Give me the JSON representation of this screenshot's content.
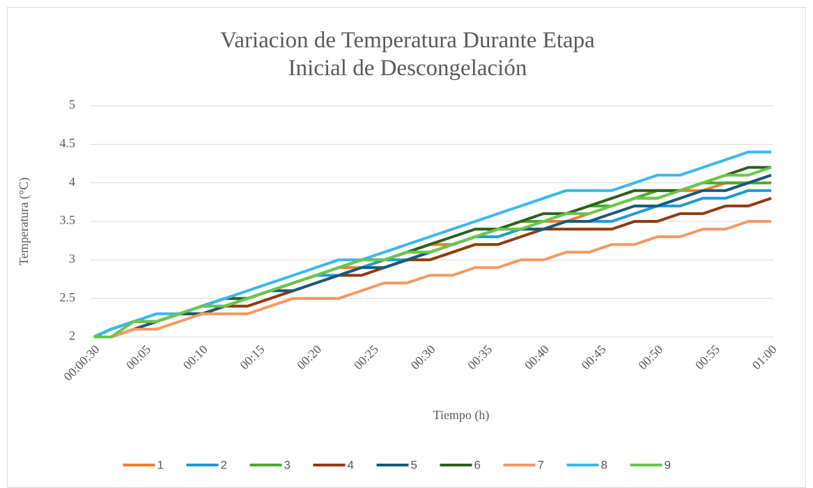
{
  "chart_data": {
    "type": "line",
    "title": "Variacion de Temperatura Durante Etapa Inicial de Descongelación",
    "x_label": "Tiempo (h)",
    "y_label": "Temperatura (°C)",
    "x": [
      0.5,
      2,
      4,
      6,
      8,
      10,
      12,
      14,
      16,
      18,
      20,
      22,
      24,
      26,
      28,
      30,
      32,
      34,
      36,
      38,
      40,
      42,
      44,
      46,
      48,
      50,
      52,
      54,
      56,
      58,
      60
    ],
    "xlim": [
      0.5,
      60
    ],
    "xticks": [
      {
        "value": 0.5,
        "label": "00:00:30"
      },
      {
        "value": 5,
        "label": "00:05"
      },
      {
        "value": 10,
        "label": "00:10"
      },
      {
        "value": 15,
        "label": "00:15"
      },
      {
        "value": 20,
        "label": "00:20"
      },
      {
        "value": 25,
        "label": "00:25"
      },
      {
        "value": 30,
        "label": "00:30"
      },
      {
        "value": 35,
        "label": "00:35"
      },
      {
        "value": 40,
        "label": "00:40"
      },
      {
        "value": 45,
        "label": "00:45"
      },
      {
        "value": 50,
        "label": "00:50"
      },
      {
        "value": 55,
        "label": "00:55"
      },
      {
        "value": 60,
        "label": "01:00"
      }
    ],
    "ylim": [
      2,
      5
    ],
    "yticks": [
      2,
      2.5,
      3,
      3.5,
      4,
      4.5,
      5
    ],
    "grid": true,
    "legend": "bottom",
    "series": [
      {
        "name": "1",
        "color": "#ed7d31",
        "values": [
          2.0,
          2.0,
          2.1,
          2.2,
          2.3,
          2.3,
          2.4,
          2.5,
          2.6,
          2.7,
          2.8,
          2.9,
          2.9,
          3.0,
          3.1,
          3.2,
          3.2,
          3.3,
          3.4,
          3.4,
          3.5,
          3.5,
          3.6,
          3.7,
          3.8,
          3.8,
          3.9,
          3.9,
          4.0,
          4.0,
          4.1
        ]
      },
      {
        "name": "2",
        "color": "#1f9ad6",
        "values": [
          2.0,
          2.1,
          2.2,
          2.2,
          2.3,
          2.4,
          2.4,
          2.5,
          2.6,
          2.7,
          2.8,
          2.8,
          2.9,
          3.0,
          3.0,
          3.1,
          3.2,
          3.3,
          3.3,
          3.4,
          3.4,
          3.5,
          3.5,
          3.5,
          3.6,
          3.7,
          3.7,
          3.8,
          3.8,
          3.9,
          3.9
        ]
      },
      {
        "name": "3",
        "color": "#4ea72e",
        "values": [
          2.0,
          2.1,
          2.2,
          2.2,
          2.3,
          2.4,
          2.5,
          2.5,
          2.6,
          2.7,
          2.8,
          2.9,
          3.0,
          3.0,
          3.1,
          3.1,
          3.2,
          3.3,
          3.4,
          3.5,
          3.5,
          3.6,
          3.7,
          3.7,
          3.8,
          3.9,
          3.9,
          4.0,
          4.0,
          4.0,
          4.0
        ]
      },
      {
        "name": "4",
        "color": "#8e3b10",
        "values": [
          2.0,
          2.0,
          2.1,
          2.2,
          2.3,
          2.3,
          2.4,
          2.4,
          2.5,
          2.6,
          2.7,
          2.8,
          2.8,
          2.9,
          3.0,
          3.0,
          3.1,
          3.2,
          3.2,
          3.3,
          3.4,
          3.4,
          3.4,
          3.4,
          3.5,
          3.5,
          3.6,
          3.6,
          3.7,
          3.7,
          3.8
        ]
      },
      {
        "name": "5",
        "color": "#155a7a",
        "values": [
          2.0,
          2.0,
          2.1,
          2.2,
          2.3,
          2.3,
          2.4,
          2.5,
          2.6,
          2.6,
          2.7,
          2.8,
          2.9,
          2.9,
          3.0,
          3.1,
          3.2,
          3.3,
          3.4,
          3.4,
          3.4,
          3.5,
          3.5,
          3.6,
          3.7,
          3.7,
          3.8,
          3.9,
          3.9,
          4.0,
          4.1
        ]
      },
      {
        "name": "6",
        "color": "#2f5f1c",
        "values": [
          2.0,
          2.1,
          2.2,
          2.2,
          2.3,
          2.4,
          2.5,
          2.5,
          2.6,
          2.7,
          2.8,
          2.9,
          3.0,
          3.0,
          3.1,
          3.2,
          3.3,
          3.4,
          3.4,
          3.5,
          3.6,
          3.6,
          3.7,
          3.8,
          3.9,
          3.9,
          3.9,
          4.0,
          4.1,
          4.2,
          4.2
        ]
      },
      {
        "name": "7",
        "color": "#f29a62",
        "values": [
          2.0,
          2.0,
          2.1,
          2.1,
          2.2,
          2.3,
          2.3,
          2.3,
          2.4,
          2.5,
          2.5,
          2.5,
          2.6,
          2.7,
          2.7,
          2.8,
          2.8,
          2.9,
          2.9,
          3.0,
          3.0,
          3.1,
          3.1,
          3.2,
          3.2,
          3.3,
          3.3,
          3.4,
          3.4,
          3.5,
          3.5
        ]
      },
      {
        "name": "8",
        "color": "#3bb7ec",
        "values": [
          2.0,
          2.1,
          2.2,
          2.3,
          2.3,
          2.4,
          2.5,
          2.6,
          2.7,
          2.8,
          2.9,
          3.0,
          3.0,
          3.1,
          3.2,
          3.3,
          3.4,
          3.5,
          3.6,
          3.7,
          3.8,
          3.9,
          3.9,
          3.9,
          4.0,
          4.1,
          4.1,
          4.2,
          4.3,
          4.4,
          4.4
        ]
      },
      {
        "name": "9",
        "color": "#6cc64a",
        "values": [
          2.0,
          2.0,
          2.2,
          2.2,
          2.3,
          2.4,
          2.4,
          2.5,
          2.6,
          2.7,
          2.8,
          2.9,
          3.0,
          3.0,
          3.1,
          3.1,
          3.2,
          3.3,
          3.4,
          3.4,
          3.5,
          3.6,
          3.6,
          3.7,
          3.8,
          3.8,
          3.9,
          4.0,
          4.1,
          4.1,
          4.2
        ]
      }
    ]
  }
}
